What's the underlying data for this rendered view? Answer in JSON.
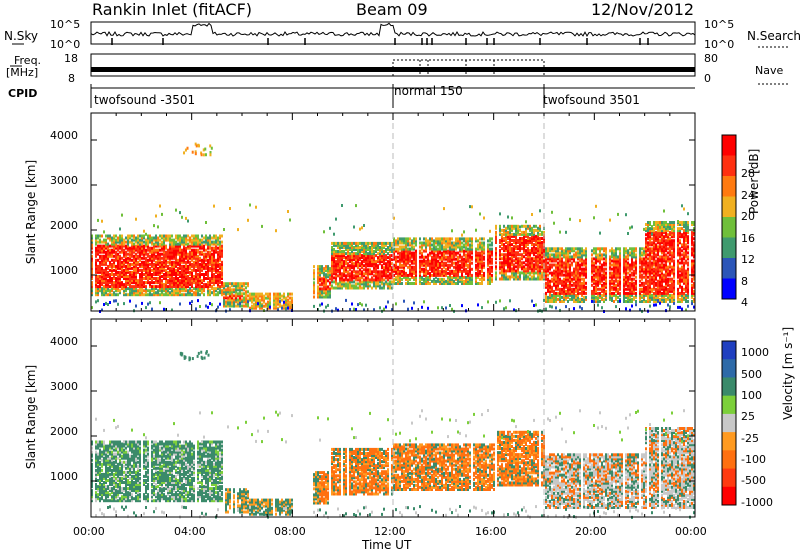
{
  "header": {
    "station": "Rankin Inlet (fitACF)",
    "beam": "Beam 09",
    "date": "12/Nov/2012"
  },
  "top_panels": {
    "nsky_label": "N.Sky",
    "nsearch_label": "N.Search",
    "noise_ticks": [
      "10^5",
      "10^0"
    ],
    "freq_label_1": "Freq.",
    "freq_label_2": "[MHz]",
    "freq_ticks": [
      "18",
      "8"
    ],
    "nave_label": "Nave",
    "nave_ticks": [
      "80",
      "0"
    ],
    "cpid_label": "CPID",
    "cpid_segments": [
      {
        "label": "twofsound -3501",
        "start_hour": 0
      },
      {
        "label": "normal 150",
        "start_hour": 12
      },
      {
        "label": "twofsound 3501",
        "start_hour": 18
      }
    ]
  },
  "chart_data": [
    {
      "type": "heatmap",
      "title": "",
      "xlabel": "Time UT",
      "ylabel": "Slant Range [km]",
      "x_ticks": [
        "00:00",
        "04:00",
        "08:00",
        "12:00",
        "16:00",
        "20:00",
        "00:00"
      ],
      "y_ticks": [
        "1000",
        "2000",
        "3000",
        "4000"
      ],
      "ylim": [
        200,
        4600
      ],
      "xlim_hours": [
        0,
        24
      ],
      "colorbar": {
        "label": "Power [dB]",
        "ticks": [
          "4",
          "8",
          "12",
          "16",
          "20",
          "24",
          "28"
        ],
        "colors": [
          "#0000ff",
          "#2b55b8",
          "#3f9a6e",
          "#6fbf3a",
          "#f0b020",
          "#ff7a10",
          "#ff3010",
          "#ff0000"
        ]
      }
    },
    {
      "type": "heatmap",
      "title": "",
      "xlabel": "Time UT",
      "ylabel": "Slant Range [km]",
      "x_ticks": [
        "00:00",
        "04:00",
        "08:00",
        "12:00",
        "16:00",
        "20:00",
        "00:00"
      ],
      "y_ticks": [
        "1000",
        "2000",
        "3000",
        "4000"
      ],
      "ylim": [
        200,
        4600
      ],
      "xlim_hours": [
        0,
        24
      ],
      "colorbar": {
        "label": "Velocity [m s⁻¹]",
        "ticks": [
          "1000",
          "500",
          "100",
          "25",
          "-25",
          "-100",
          "-500",
          "-1000"
        ],
        "colors": [
          "#1f3fc0",
          "#2e6aa8",
          "#3a8a6a",
          "#7ccf3a",
          "#c8c8c8",
          "#ff9a20",
          "#ff7010",
          "#ff3a10",
          "#ff0000"
        ]
      }
    }
  ]
}
